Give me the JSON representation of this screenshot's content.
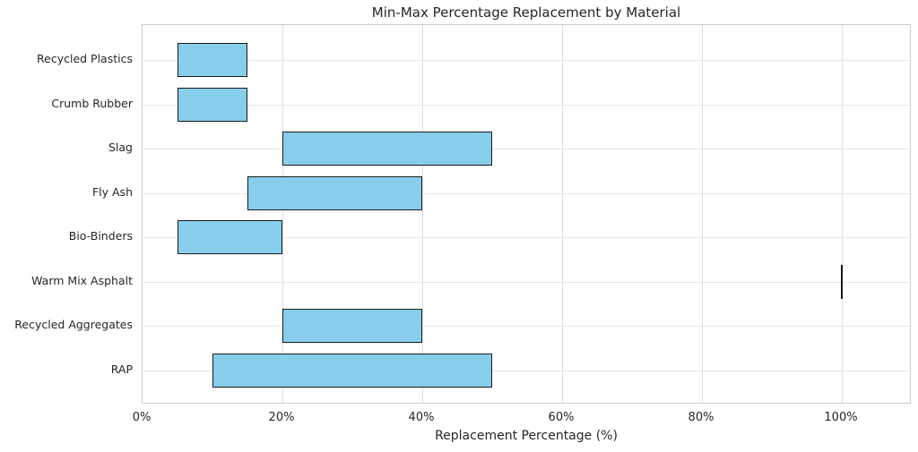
{
  "chart_data": {
    "type": "bar",
    "orientation": "horizontal-range",
    "title": "Min-Max Percentage Replacement by Material",
    "xlabel": "Replacement Percentage (%)",
    "ylabel": "",
    "categories": [
      "Recycled Plastics",
      "Crumb Rubber",
      "Slag",
      "Fly Ash",
      "Bio-Binders",
      "Warm Mix Asphalt",
      "Recycled Aggregates",
      "RAP"
    ],
    "series": [
      {
        "name": "Min %",
        "values": [
          5,
          5,
          20,
          15,
          5,
          100,
          20,
          10
        ]
      },
      {
        "name": "Max %",
        "values": [
          15,
          15,
          50,
          40,
          20,
          100,
          40,
          50
        ]
      }
    ],
    "x_tick_labels": [
      "0%",
      "20%",
      "40%",
      "60%",
      "80%",
      "100%"
    ],
    "x_tick_values": [
      0,
      20,
      40,
      60,
      80,
      100
    ],
    "xlim": [
      0,
      110
    ],
    "grid": true,
    "legend": false,
    "colors": {
      "bar_fill": "#87CEEB",
      "bar_edge": "#1a1a1a",
      "grid_vertical": "#dedede",
      "grid_horizontal": "#e6e6e6",
      "spine": "#cccccc",
      "text": "#262626",
      "background": "#ffffff"
    }
  }
}
